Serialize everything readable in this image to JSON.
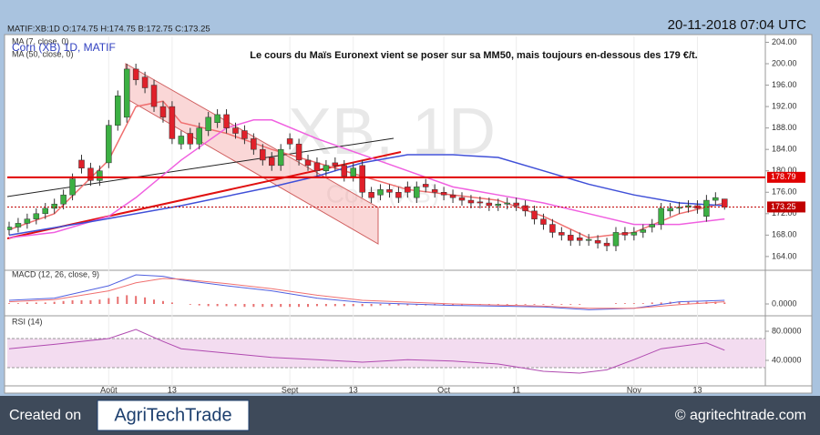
{
  "chart_data": {
    "type": "candlestick",
    "header": "MATIF:XB:1D O:174.75 H:174.75 B:172.75 C:173.25",
    "timestamp": "20-11-2018 07:04 UTC",
    "annotation": "Le cours du Maïs Euronext vient se poser sur sa MM50, mais toujours en-dessous des 179 €/t.",
    "watermark": "XB, 1D",
    "watermark_sub": "Corn (XB)",
    "instrument": "Corn (XB) 1D, MATIF",
    "up_color": "#3cb043",
    "down_color": "#e0202a",
    "xlim": [
      -0.2,
      83.5
    ],
    "xticks": [
      {
        "value": 11,
        "label": "Août"
      },
      {
        "value": 18,
        "label": "13"
      },
      {
        "value": 31,
        "label": "Sept"
      },
      {
        "value": 38,
        "label": "13"
      },
      {
        "value": 48,
        "label": "Oct"
      },
      {
        "value": 56,
        "label": "11"
      },
      {
        "value": 69,
        "label": "Nov"
      },
      {
        "value": 76,
        "label": "13"
      }
    ],
    "ylim": [
      161.6,
      205.1
    ],
    "yticks": [
      {
        "value": 204,
        "label": "204.00"
      },
      {
        "value": 200,
        "label": "200.00"
      },
      {
        "value": 196,
        "label": "196.00"
      },
      {
        "value": 192,
        "label": "192.00"
      },
      {
        "value": 188,
        "label": "188.00"
      },
      {
        "value": 184,
        "label": "184.00"
      },
      {
        "value": 180,
        "label": "180.00"
      },
      {
        "value": 176,
        "label": "176.00"
      },
      {
        "value": 172,
        "label": "172.00"
      },
      {
        "value": 168,
        "label": "168.00"
      },
      {
        "value": 164,
        "label": "164.00"
      }
    ],
    "open": [
      169,
      169.5,
      170.2,
      171,
      172,
      173,
      173.8,
      175.5,
      182,
      180.5,
      178.2,
      181.5,
      188.5,
      190,
      199,
      197.5,
      196,
      192,
      192,
      185,
      187,
      185,
      187.5,
      189,
      190.5,
      188,
      187.5,
      186,
      184,
      182.5,
      181,
      186,
      185,
      182,
      181.5,
      180,
      181.5,
      181,
      179,
      181,
      176,
      175.5,
      176.5,
      176,
      177,
      175,
      177.5,
      176.5,
      176,
      175.5,
      175,
      174.5,
      174.2,
      174,
      173.5,
      173.8,
      174,
      173.5,
      172.5,
      171,
      170,
      168.5,
      168,
      167.5,
      167,
      167,
      166.5,
      166,
      168.5,
      168,
      168.5,
      169.5,
      170,
      172.5,
      173,
      173.2,
      173.5,
      171.5,
      174.5,
      174.75
    ],
    "high": [
      170.5,
      171.2,
      172,
      173,
      174,
      174.8,
      176.5,
      179.5,
      183,
      181.5,
      181,
      189.5,
      195,
      200,
      200,
      198.5,
      197,
      193,
      193,
      187.5,
      188,
      189,
      191,
      191.5,
      191.5,
      189,
      188.5,
      187,
      185,
      183.5,
      185,
      187,
      186,
      183,
      182.5,
      182,
      182.5,
      182,
      181.5,
      182,
      177,
      177.5,
      177.5,
      177,
      178,
      178,
      178.5,
      177.5,
      177,
      176.5,
      176,
      175.5,
      175.2,
      175,
      174.8,
      175,
      175,
      174.5,
      173.5,
      172,
      171,
      169.5,
      169,
      168.5,
      168.2,
      168,
      167.5,
      169.5,
      169.5,
      169.5,
      170,
      171,
      174,
      174,
      174.2,
      174.5,
      174.5,
      175.5,
      176,
      174.75
    ],
    "low": [
      168,
      168.5,
      169.2,
      170,
      171,
      172,
      172.8,
      174.5,
      179.5,
      177.2,
      177.2,
      180.5,
      187.5,
      189,
      196,
      194.5,
      191,
      189,
      185,
      184,
      184,
      184,
      186.5,
      188,
      187,
      186,
      185,
      183,
      181,
      180,
      180,
      184,
      181,
      180,
      179,
      179,
      180,
      178,
      178,
      175,
      174,
      174.5,
      175,
      174,
      175,
      174,
      176,
      175,
      174.5,
      174,
      173.5,
      173,
      173,
      172.5,
      172.5,
      172.8,
      172.5,
      171.5,
      170,
      169,
      167.5,
      167,
      166,
      166,
      166,
      165.5,
      165,
      165,
      167,
      167,
      167.5,
      168.5,
      169,
      171.5,
      172,
      172.2,
      172,
      170.5,
      173.5,
      172.75
    ],
    "close": [
      169.5,
      170.2,
      171,
      172,
      173,
      173.8,
      175.5,
      178.5,
      180.5,
      178.2,
      180,
      188.5,
      194,
      199,
      197,
      195.5,
      192,
      190,
      186,
      186.5,
      185,
      188,
      190,
      190.5,
      188,
      187,
      186,
      184,
      182,
      181,
      184,
      185,
      182,
      181,
      180,
      181,
      181,
      179,
      180.5,
      176,
      175,
      176.5,
      176,
      175,
      176,
      177,
      177,
      176,
      175.5,
      175,
      174.5,
      174,
      174,
      173.5,
      173.8,
      174,
      173.5,
      172.5,
      171,
      170,
      168.5,
      168,
      167,
      167,
      167.2,
      166.5,
      166,
      168.5,
      168,
      168.5,
      169,
      170,
      173,
      173,
      173.2,
      173.5,
      173,
      174.5,
      175,
      173.25
    ],
    "series": [
      {
        "name": "MA (7, close, 0)",
        "color": "#f07070",
        "x": [
          0,
          5,
          11,
          14,
          17,
          19,
          24,
          29,
          34,
          39,
          44,
          49,
          54,
          59,
          64,
          69,
          74,
          79
        ],
        "values": [
          169,
          172,
          182,
          192,
          193,
          189,
          187,
          184,
          181.5,
          179,
          176.5,
          175.5,
          174.5,
          171.5,
          167.5,
          168.5,
          172,
          174
        ]
      },
      {
        "color": "#f060e0",
        "x": [
          0,
          5,
          11,
          14,
          19,
          24,
          27,
          29,
          34,
          39,
          44,
          49,
          54,
          59,
          64,
          69,
          74,
          79
        ],
        "values": [
          167.5,
          168.5,
          171.5,
          175,
          182,
          188,
          189.5,
          189.5,
          186,
          183,
          180,
          177,
          175.5,
          174,
          172,
          170,
          170,
          171
        ]
      },
      {
        "name": "MA (50, close, 0)",
        "color": "#4050d8",
        "x": [
          0,
          9,
          19,
          29,
          34,
          39,
          44,
          49,
          54,
          59,
          64,
          69,
          74,
          79
        ],
        "values": [
          168,
          170.5,
          173.5,
          177,
          179,
          181.5,
          183,
          183,
          182.5,
          180,
          177.5,
          175.5,
          174,
          173.5
        ]
      }
    ],
    "levels": [
      {
        "value": 178.79,
        "color": "#e00000",
        "style": "solid"
      },
      {
        "value": 173.25,
        "color": "#c00000",
        "style": "dotted"
      }
    ],
    "macd": {
      "label": "MACD (12, 26, close, 9)",
      "ylim": [
        -1.5,
        4.5
      ],
      "yticks": [
        {
          "value": 0,
          "label": "0.0000"
        }
      ],
      "series": [
        {
          "color": "#5060e0",
          "x": [
            0,
            5,
            11,
            14,
            17,
            19,
            24,
            29,
            34,
            39,
            49,
            59,
            64,
            69,
            74,
            79
          ],
          "values": [
            0.5,
            0.8,
            2.5,
            4,
            3.8,
            3.3,
            2.5,
            1.8,
            0.8,
            0.2,
            -0.2,
            -0.4,
            -0.8,
            -0.6,
            0.3,
            0.5
          ]
        },
        {
          "color": "#f07070",
          "x": [
            0,
            5,
            11,
            14,
            17,
            19,
            24,
            29,
            34,
            39,
            49,
            59,
            64,
            69,
            74,
            79
          ],
          "values": [
            0.3,
            0.6,
            1.8,
            2.9,
            3.5,
            3.4,
            2.8,
            2.1,
            1.2,
            0.5,
            0,
            -0.3,
            -0.6,
            -0.6,
            -0.1,
            0.3
          ]
        }
      ],
      "histogram": {
        "color": "#e87070",
        "values": [
          0.1,
          0.1,
          0.2,
          0.2,
          0.2,
          0.3,
          0.4,
          0.5,
          0.5,
          0.5,
          0.6,
          0.8,
          1.0,
          1.2,
          1.1,
          0.9,
          0.6,
          0.4,
          0.2,
          0.0,
          -0.1,
          -0.2,
          -0.3,
          -0.3,
          -0.3,
          -0.3,
          -0.4,
          -0.4,
          -0.4,
          -0.4,
          -0.4,
          -0.4,
          -0.4,
          -0.4,
          -0.3,
          -0.3,
          -0.3,
          -0.3,
          -0.3,
          -0.3,
          -0.3,
          -0.2,
          -0.2,
          -0.2,
          -0.2,
          -0.2,
          -0.2,
          -0.2,
          -0.2,
          -0.2,
          -0.2,
          -0.1,
          -0.1,
          -0.1,
          -0.1,
          -0.1,
          -0.1,
          -0.1,
          -0.1,
          -0.1,
          -0.1,
          -0.1,
          -0.1,
          -0.1,
          0,
          0,
          0,
          0.1,
          0.1,
          0.1,
          0.1,
          0.2,
          0.2,
          0.3,
          0.3,
          0.3,
          0.3,
          0.3,
          0.3,
          0.2
        ]
      }
    },
    "rsi": {
      "label": "RSI (14)",
      "ylim": [
        10,
        100
      ],
      "yticks": [
        {
          "value": 80,
          "label": "80.0000"
        },
        {
          "value": 40,
          "label": "40.0000"
        }
      ],
      "band": [
        30,
        70
      ],
      "band_color": "#f3dcf0",
      "series": [
        {
          "color": "#b04ab0",
          "x": [
            0,
            5,
            11,
            14,
            17,
            19,
            24,
            29,
            34,
            39,
            44,
            49,
            54,
            59,
            63,
            66,
            69,
            72,
            77,
            79
          ],
          "values": [
            56,
            62,
            70,
            82.5,
            66,
            56,
            50,
            44,
            41,
            37.5,
            41,
            39,
            35,
            25,
            22.5,
            27,
            41,
            56,
            64,
            54
          ]
        }
      ]
    },
    "footer": {
      "created": "Created on",
      "logo": "AgriTechTrade",
      "site": "© agritechtrade.com"
    }
  }
}
